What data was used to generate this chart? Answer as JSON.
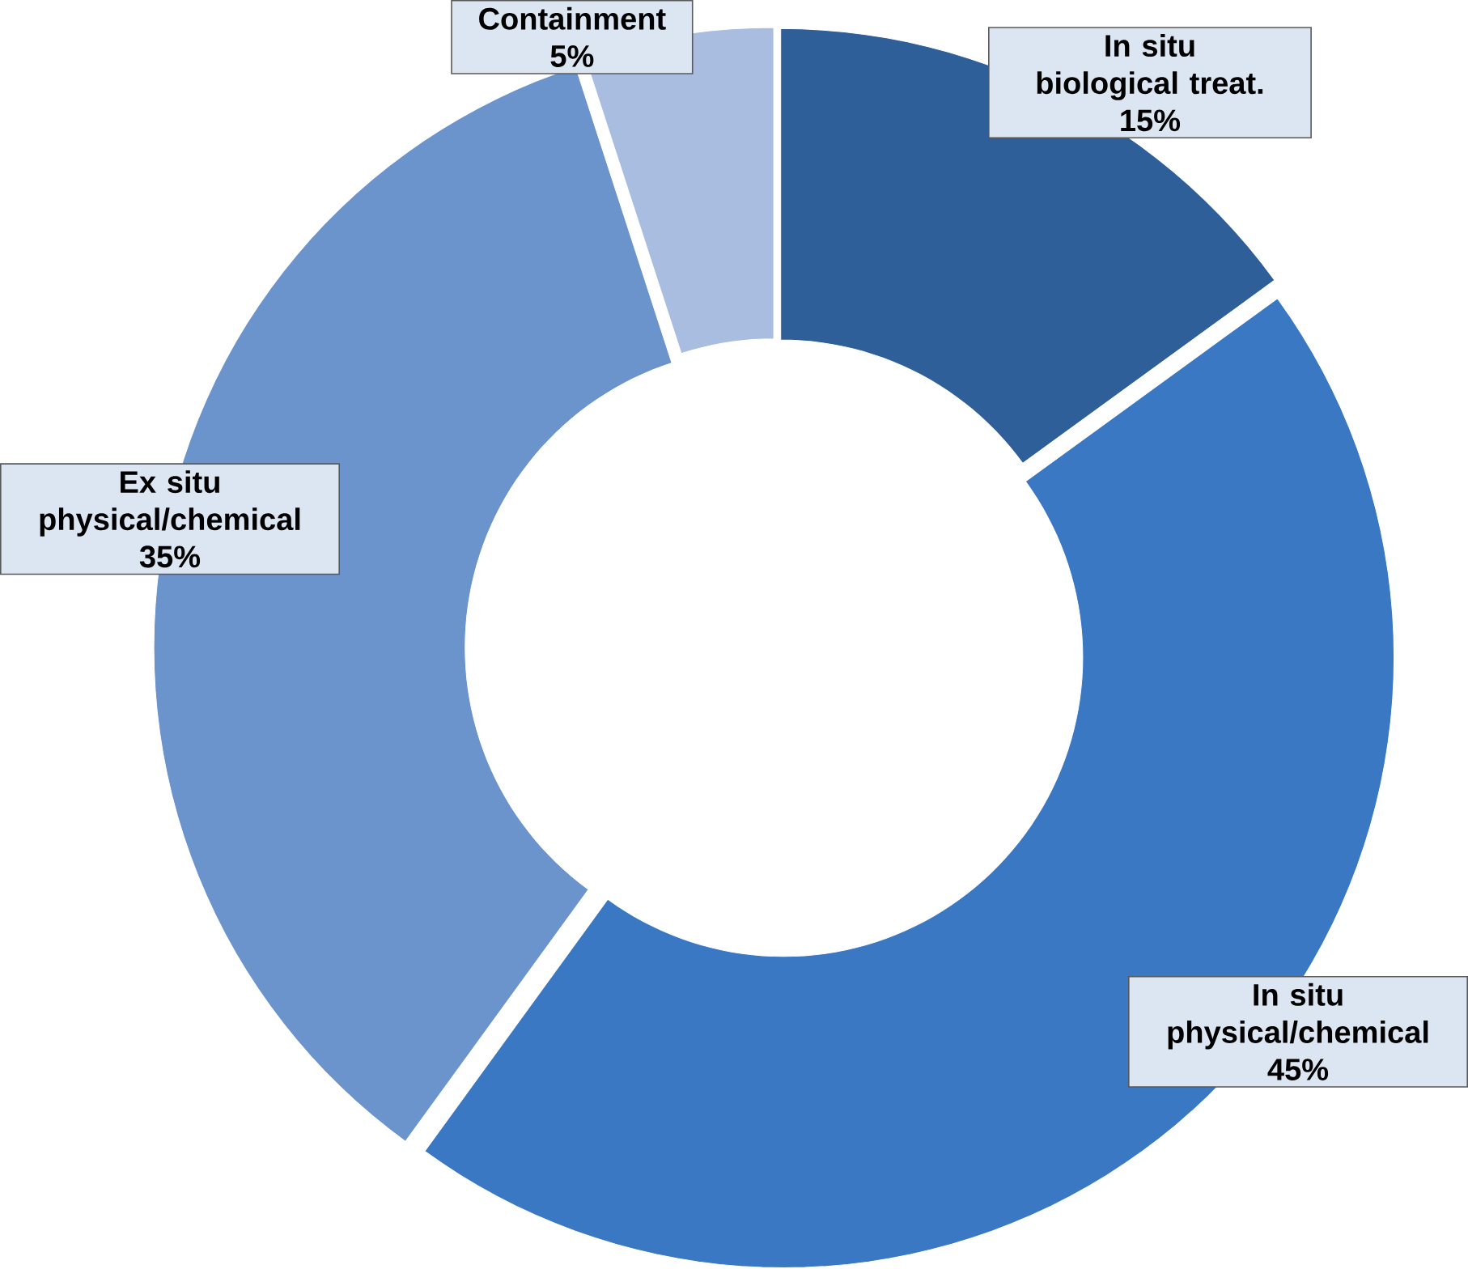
{
  "chart_data": {
    "type": "donut",
    "categories": [
      "In situ biological treat.",
      "In situ physical/chemical",
      "Ex situ physical/chemical",
      "Containment"
    ],
    "values": [
      15,
      45,
      35,
      5
    ],
    "value_labels": [
      "15%",
      "45%",
      "35%",
      "5%"
    ],
    "colors": [
      "#2f5f98",
      "#3b78c4",
      "#6b93cc",
      "#a9bde0"
    ]
  }
}
